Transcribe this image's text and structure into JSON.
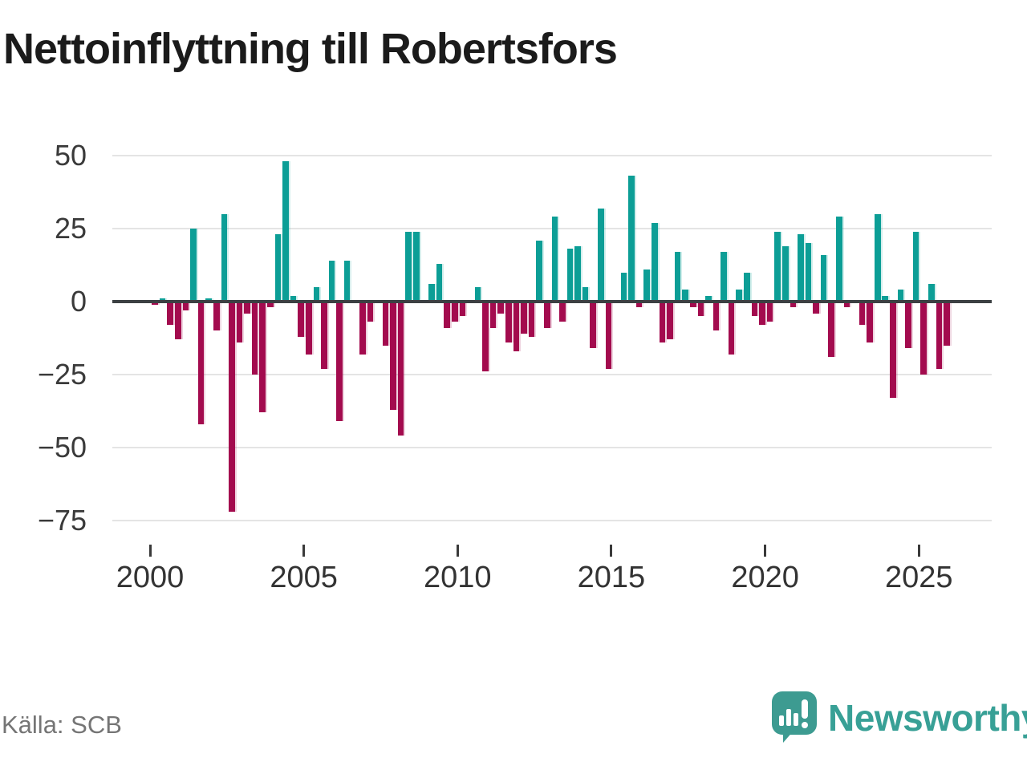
{
  "title": "Nettoinflyttning till Robertsfors",
  "source": "Källa: SCB",
  "logo": {
    "text": "Newsworthy"
  },
  "chart_data": {
    "type": "bar",
    "title": "Nettoinflyttning till Robertsfors",
    "xlabel": "",
    "ylabel": "",
    "frequency": "quarterly",
    "start_year": 2000,
    "start_quarter": 1,
    "ylim": [
      -75,
      50
    ],
    "grid": true,
    "y_tick_values": [
      50,
      25,
      0,
      -25,
      -50,
      -75
    ],
    "y_tick_labels": [
      "50",
      "25",
      "0",
      "−25",
      "−50",
      "−75"
    ],
    "x_tick_years": [
      2000,
      2005,
      2010,
      2015,
      2020,
      2025
    ],
    "x_tick_labels": [
      "2000",
      "2005",
      "2010",
      "2015",
      "2020",
      "2025"
    ],
    "colors": {
      "positive": "#0c9e96",
      "negative": "#a30b4e",
      "axis": "#3c4043",
      "grid": "#e4e4e4"
    },
    "series": [
      {
        "name": "Nettoinflyttning",
        "values": [
          -1,
          1,
          -8,
          -13,
          -3,
          25,
          -42,
          1,
          -10,
          30,
          -72,
          -14,
          -4,
          -25,
          -38,
          -2,
          23,
          48,
          2,
          -12,
          -18,
          5,
          -23,
          14,
          -41,
          14,
          0,
          -18,
          -7,
          0,
          -15,
          -37,
          -46,
          24,
          24,
          0,
          6,
          13,
          -9,
          -7,
          -5,
          0,
          5,
          -24,
          -9,
          -4,
          -14,
          -17,
          -11,
          -12,
          21,
          -9,
          29,
          -7,
          18,
          19,
          5,
          -16,
          32,
          -23,
          0,
          10,
          43,
          -2,
          11,
          27,
          -14,
          -13,
          17,
          4,
          -2,
          -5,
          2,
          -10,
          17,
          -18,
          4,
          10,
          -5,
          -8,
          -7,
          24,
          19,
          -2,
          23,
          20,
          -4,
          16,
          -19,
          29,
          -2,
          0,
          -8,
          -14,
          30,
          2,
          -33,
          4,
          -16,
          24,
          -25,
          6,
          -23,
          -15
        ]
      }
    ]
  }
}
